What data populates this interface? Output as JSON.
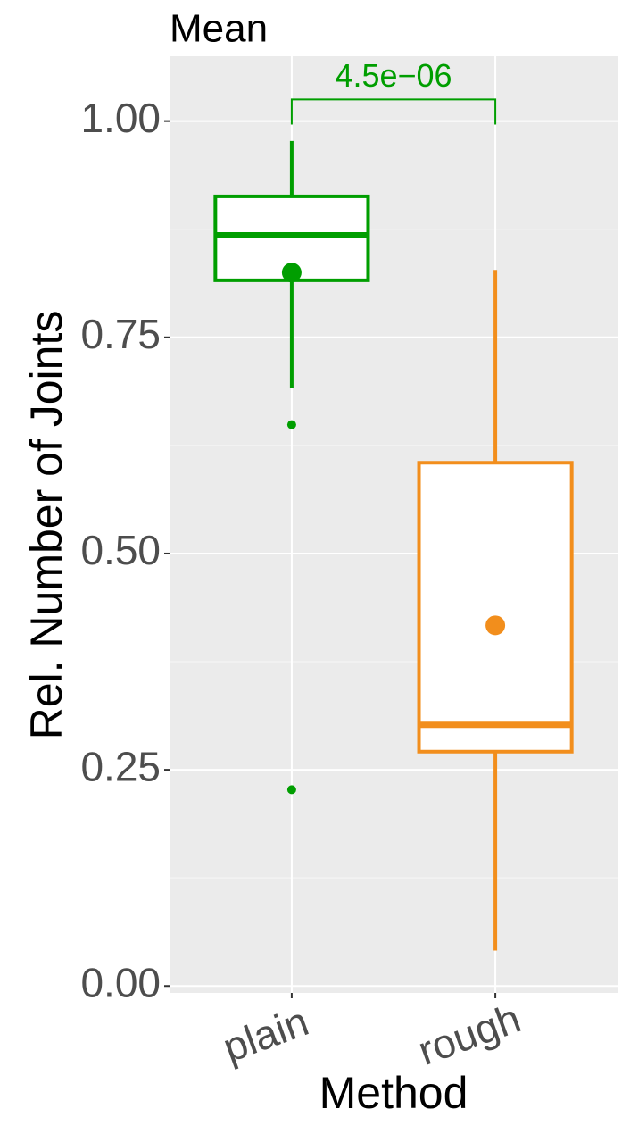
{
  "chart_data": {
    "type": "box",
    "title": "Mean",
    "x_label": "Method",
    "y_label": "Rel. Number of Joints",
    "categories": [
      "plain",
      "rough"
    ],
    "boxes": [
      {
        "color": "#009e00",
        "whisker_low": 0.692,
        "q1": 0.816,
        "median": 0.868,
        "q3": 0.913,
        "whisker_high": 0.977,
        "mean": 0.825,
        "outliers": [
          0.649,
          0.227
        ]
      },
      {
        "color": "#f28e1c",
        "whisker_low": 0.041,
        "q1": 0.271,
        "median": 0.302,
        "q3": 0.605,
        "whisker_high": 0.828,
        "mean": 0.417,
        "outliers": []
      }
    ],
    "annotation": {
      "label": "4.5e−06",
      "y": 1.025,
      "tip_y": 0.996,
      "color": "#009e00"
    },
    "ylim": [
      -0.008,
      1.075
    ],
    "yticks": [
      {
        "value": 0,
        "label": "0.00"
      },
      {
        "value": 0.25,
        "label": "0.25"
      },
      {
        "value": 0.5,
        "label": "0.50"
      },
      {
        "value": 0.75,
        "label": "0.75"
      },
      {
        "value": 1,
        "label": "1.00"
      }
    ],
    "grid": true
  }
}
